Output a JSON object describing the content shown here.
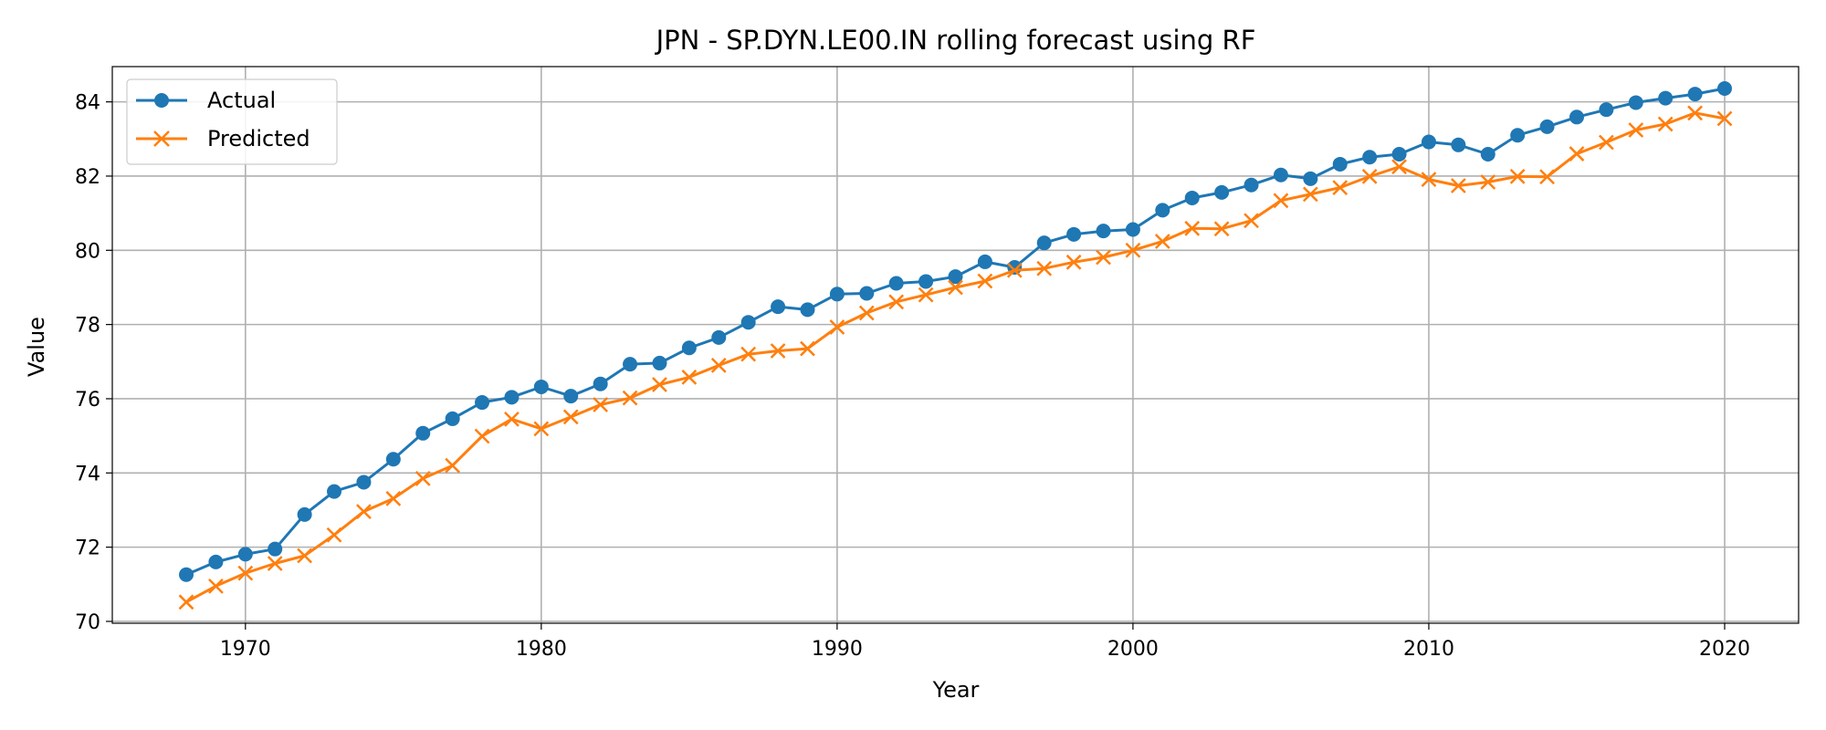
{
  "chart_data": {
    "type": "line",
    "title": "JPN - SP.DYN.LE00.IN rolling forecast using RF",
    "xlabel": "Year",
    "ylabel": "Value",
    "xlim": [
      1965.5,
      2022.5
    ],
    "ylim": [
      69.95,
      84.95
    ],
    "xticks": [
      1970,
      1980,
      1990,
      2000,
      2010,
      2020
    ],
    "yticks": [
      70,
      72,
      74,
      76,
      78,
      80,
      82,
      84
    ],
    "grid": true,
    "legend_position": "upper-left",
    "x": [
      1968,
      1969,
      1970,
      1971,
      1972,
      1973,
      1974,
      1975,
      1976,
      1977,
      1978,
      1979,
      1980,
      1981,
      1982,
      1983,
      1984,
      1985,
      1986,
      1987,
      1988,
      1989,
      1990,
      1991,
      1992,
      1993,
      1994,
      1995,
      1996,
      1997,
      1998,
      1999,
      2000,
      2001,
      2002,
      2003,
      2004,
      2005,
      2006,
      2007,
      2008,
      2009,
      2010,
      2011,
      2012,
      2013,
      2014,
      2015,
      2016,
      2017,
      2018,
      2019,
      2020
    ],
    "series": [
      {
        "name": "Actual",
        "color": "#1f77b4",
        "marker": "circle",
        "values": [
          71.26,
          71.6,
          71.81,
          71.95,
          72.88,
          73.5,
          73.75,
          74.37,
          75.07,
          75.46,
          75.9,
          76.04,
          76.32,
          76.07,
          76.4,
          76.93,
          76.96,
          77.37,
          77.65,
          78.06,
          78.48,
          78.4,
          78.82,
          78.84,
          79.11,
          79.16,
          79.29,
          79.69,
          79.54,
          80.2,
          80.43,
          80.52,
          80.56,
          81.08,
          81.41,
          81.56,
          81.76,
          82.03,
          81.93,
          82.32,
          82.51,
          82.59,
          82.92,
          82.84,
          82.59,
          83.1,
          83.33,
          83.59,
          83.79,
          83.98,
          84.1,
          84.21,
          84.36
        ]
      },
      {
        "name": "Predicted",
        "color": "#ff7f0e",
        "marker": "x",
        "values": [
          70.52,
          70.95,
          71.3,
          71.56,
          71.77,
          72.33,
          72.96,
          73.31,
          73.85,
          74.2,
          74.99,
          75.45,
          75.19,
          75.51,
          75.84,
          76.02,
          76.38,
          76.58,
          76.9,
          77.2,
          77.29,
          77.35,
          77.93,
          78.31,
          78.61,
          78.8,
          79.0,
          79.17,
          79.46,
          79.51,
          79.68,
          79.81,
          80.0,
          80.24,
          80.59,
          80.58,
          80.8,
          81.34,
          81.51,
          81.69,
          81.99,
          82.25,
          81.91,
          81.74,
          81.84,
          81.99,
          81.98,
          82.6,
          82.91,
          83.24,
          83.4,
          83.7,
          83.55
        ]
      }
    ]
  }
}
